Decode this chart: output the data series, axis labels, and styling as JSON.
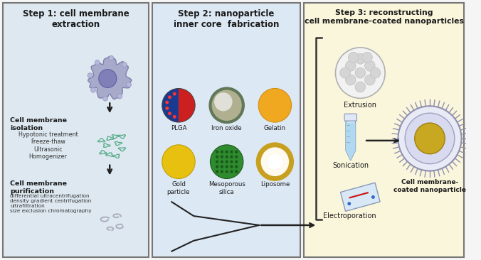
{
  "fig_width": 6.76,
  "fig_height": 3.66,
  "dpi": 100,
  "bg_color": "#f5f5f5",
  "panel1_bg": "#dde8f0",
  "panel2_bg": "#dde8f5",
  "panel3_bg": "#faf6dc",
  "border_color": "#888888",
  "title1": "Step 1: cell membrane\nextraction",
  "title2": "Step 2: nanoparticle\ninner core  fabrication",
  "title3": "Step 3: reconstructing\ncell membrane-coated nanoparticles",
  "text_color": "#1a1a1a",
  "step2_labels": [
    "PLGA",
    "Iron oxide",
    "Gelatin",
    "Gold\nparticle",
    "Mesoporous\nsilica",
    "Liposome"
  ],
  "step3_labels": [
    "Extrusion",
    "Sonication",
    "Electroporation",
    "Cell membrane-\ncoated nanoparticle"
  ]
}
